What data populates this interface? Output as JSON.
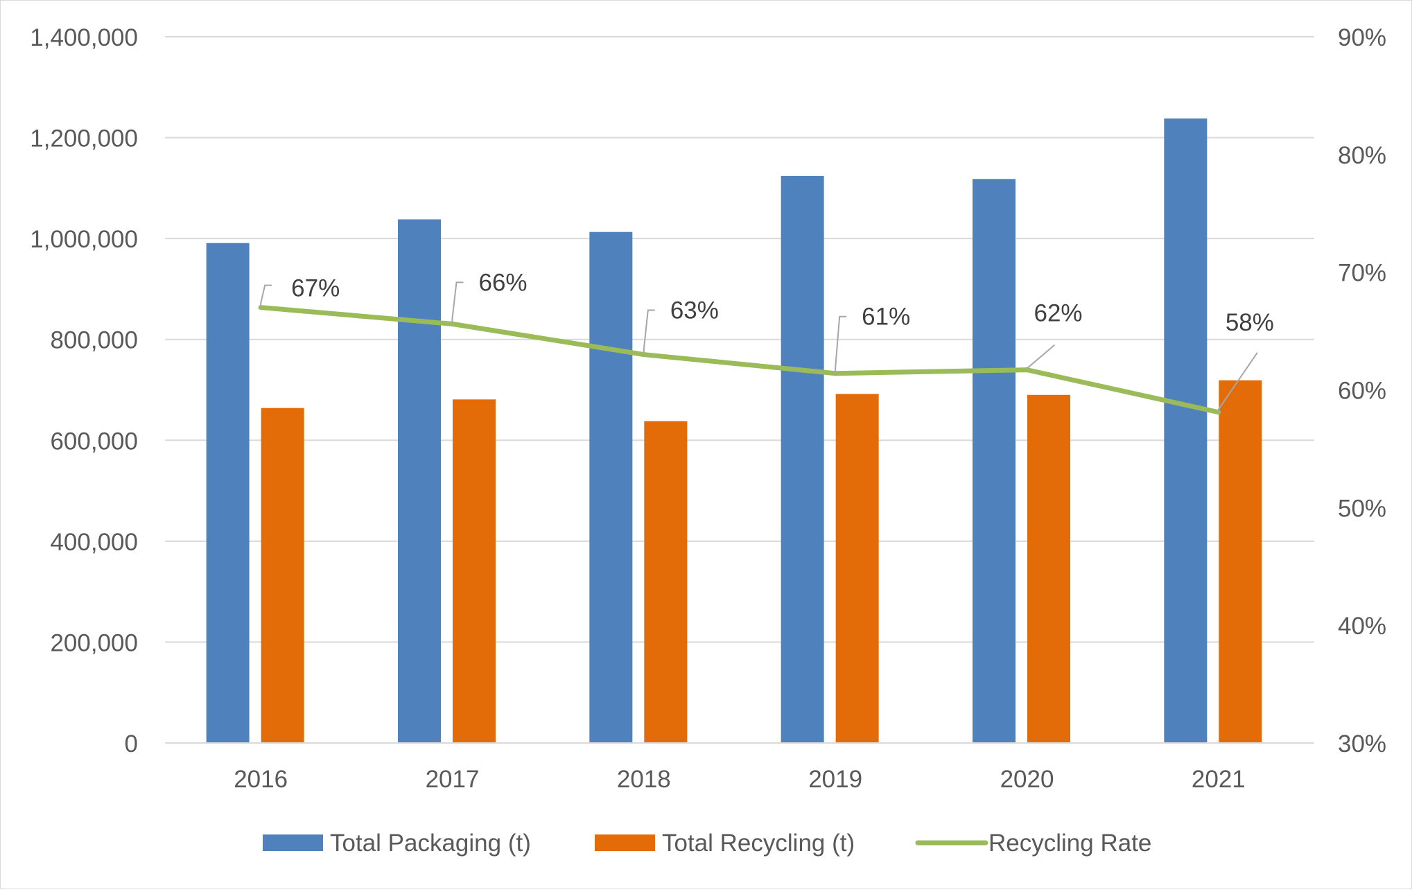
{
  "chart_data": {
    "type": "bar",
    "categories": [
      "2016",
      "2017",
      "2018",
      "2019",
      "2020",
      "2021"
    ],
    "series": [
      {
        "name": "Total Packaging (t)",
        "kind": "bar",
        "axis": "left",
        "color": "#4f81bd",
        "values": [
          991000,
          1038000,
          1013000,
          1124000,
          1118000,
          1238000
        ]
      },
      {
        "name": "Total Recycling (t)",
        "kind": "bar",
        "axis": "left",
        "color": "#e36c09",
        "values": [
          664000,
          681000,
          638000,
          692000,
          690000,
          719000
        ]
      },
      {
        "name": "Recycling Rate",
        "kind": "line",
        "axis": "right",
        "color": "#9bbb59",
        "values": [
          67,
          65.6,
          63,
          61.4,
          61.7,
          58.1
        ],
        "data_labels": [
          "67%",
          "66%",
          "63%",
          "61%",
          "62%",
          "58%"
        ]
      }
    ],
    "y_left": {
      "ylim": [
        0,
        1400000
      ],
      "ticks": [
        0,
        200000,
        400000,
        600000,
        800000,
        1000000,
        1200000,
        1400000
      ],
      "tick_labels": [
        "0",
        "200,000",
        "400,000",
        "600,000",
        "800,000",
        "1,000,000",
        "1,200,000",
        "1,400,000"
      ]
    },
    "y_right": {
      "ylim": [
        30,
        90
      ],
      "ticks": [
        30,
        40,
        50,
        60,
        70,
        80,
        90
      ],
      "tick_labels": [
        "30%",
        "40%",
        "50%",
        "60%",
        "70%",
        "80%",
        "90%"
      ]
    },
    "title": "",
    "xlabel": "",
    "ylabel": "",
    "grid": true,
    "legend_position": "bottom",
    "colors": {
      "gridline": "#d9d9d9",
      "axis_text": "#595959",
      "label_text": "#404040",
      "leader_line": "#a6a6a6"
    }
  }
}
